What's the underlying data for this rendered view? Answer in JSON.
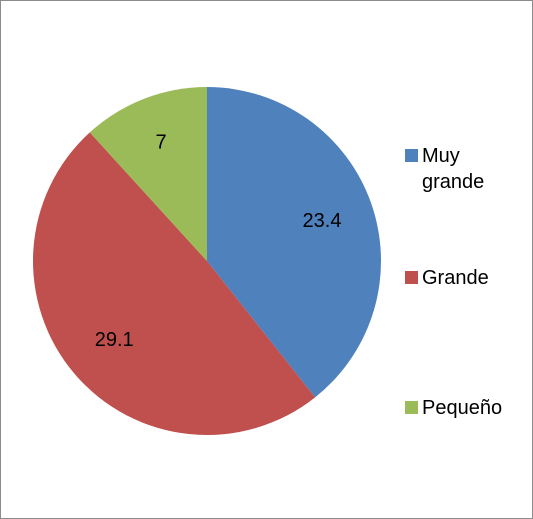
{
  "chart_data": {
    "type": "pie",
    "title": "",
    "categories": [
      "Muy grande",
      "Grande",
      "Pequeño"
    ],
    "values": [
      23.4,
      29.1,
      7
    ],
    "data_labels": [
      "23.4",
      "29.1",
      "7"
    ],
    "colors": [
      "#4f81bd",
      "#c0504d",
      "#9bbb59"
    ],
    "start_angle_deg": 0,
    "direction": "clockwise",
    "legend": "right"
  }
}
